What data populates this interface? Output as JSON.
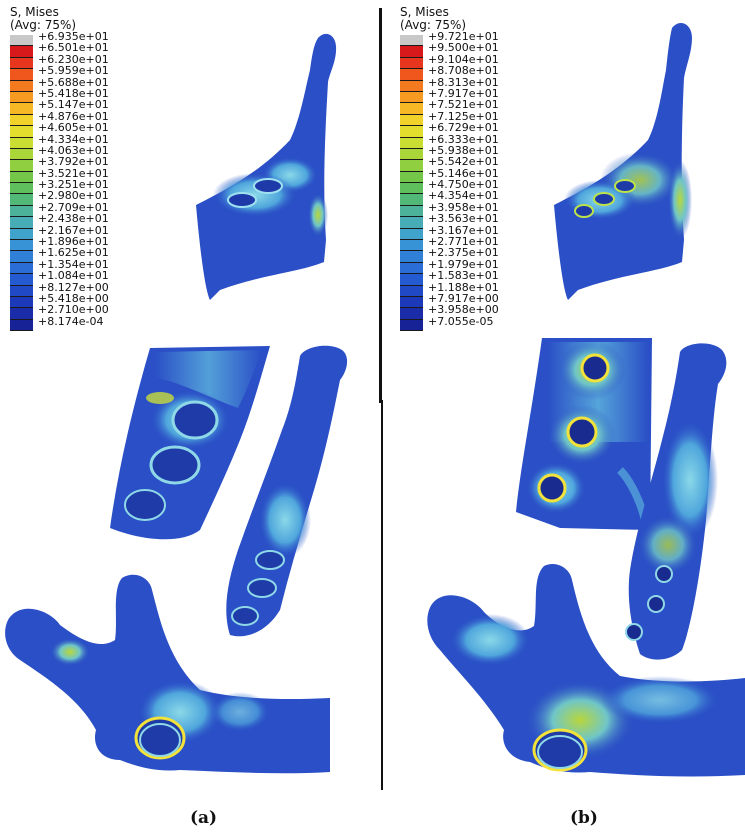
{
  "panels": [
    {
      "id": "a",
      "legend": {
        "title_line1": "S, Mises",
        "title_line2": "(Avg: 75%)",
        "labels": [
          "+6.935e+01",
          "+6.501e+01",
          "+6.230e+01",
          "+5.959e+01",
          "+5.688e+01",
          "+5.418e+01",
          "+5.147e+01",
          "+4.876e+01",
          "+4.605e+01",
          "+4.334e+01",
          "+4.063e+01",
          "+3.792e+01",
          "+3.521e+01",
          "+3.251e+01",
          "+2.980e+01",
          "+2.709e+01",
          "+2.438e+01",
          "+2.167e+01",
          "+1.896e+01",
          "+1.625e+01",
          "+1.354e+01",
          "+1.084e+01",
          "+8.127e+00",
          "+5.418e+00",
          "+2.710e+00",
          "+8.174e-04"
        ]
      },
      "caption": "(a)"
    },
    {
      "id": "b",
      "legend": {
        "title_line1": "S, Mises",
        "title_line2": "(Avg: 75%)",
        "labels": [
          "+9.721e+01",
          "+9.500e+01",
          "+9.104e+01",
          "+8.708e+01",
          "+8.313e+01",
          "+7.917e+01",
          "+7.521e+01",
          "+7.125e+01",
          "+6.729e+01",
          "+6.333e+01",
          "+5.938e+01",
          "+5.542e+01",
          "+5.146e+01",
          "+4.750e+01",
          "+4.354e+01",
          "+3.958e+01",
          "+3.563e+01",
          "+3.167e+01",
          "+2.771e+01",
          "+2.375e+01",
          "+1.979e+01",
          "+1.583e+01",
          "+1.188e+01",
          "+7.917e+00",
          "+3.958e+00",
          "+7.055e-05"
        ]
      },
      "caption": "(b)"
    }
  ],
  "colors": {
    "scale": [
      "#c8c8c8",
      "#d7191c",
      "#e8351e",
      "#f0571d",
      "#f47a1f",
      "#f79a22",
      "#f7b825",
      "#f1d22a",
      "#e3dd2e",
      "#c9dd32",
      "#aad63a",
      "#8fcf40",
      "#73c648",
      "#5fbf5c",
      "#52b878",
      "#4cb299",
      "#47acb6",
      "#3fa3cc",
      "#3893d6",
      "#3180d8",
      "#2b6dd6",
      "#255bd0",
      "#2049c6",
      "#1c39b9",
      "#1a2ca8",
      "#172297"
    ],
    "base_blue": "#2a4fc6",
    "mid_blue": "#3a8fd8",
    "cyan": "#7fd3e6",
    "green": "#9fd24a",
    "yellow": "#f3e23a",
    "divider": "#111111"
  }
}
